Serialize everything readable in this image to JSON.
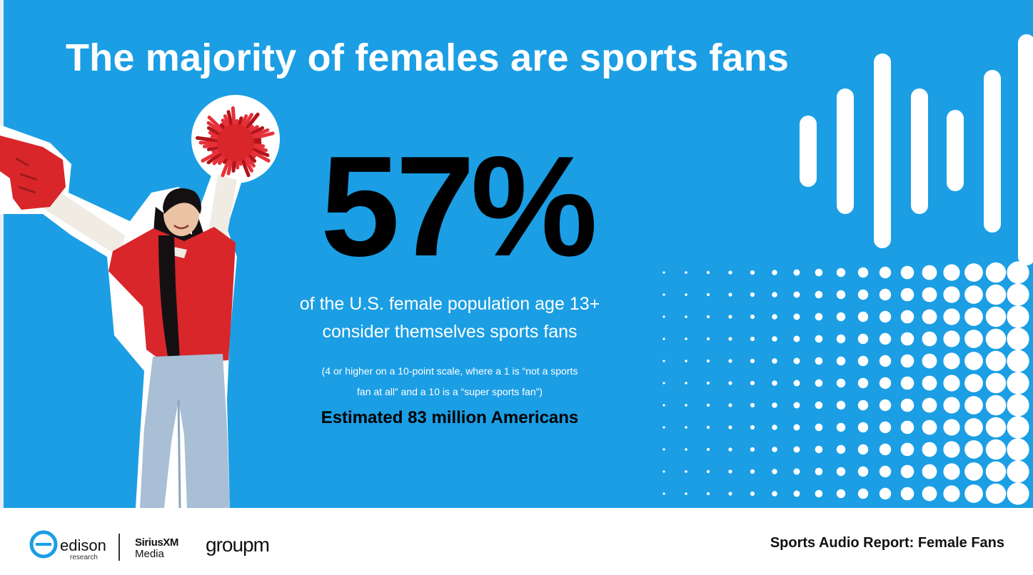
{
  "slide": {
    "title": "The majority of females are sports fans",
    "stat_value": "57%",
    "description_line1": "of the U.S. female population age 13+",
    "description_line2": "consider themselves sports fans",
    "note_line1": "(4 or higher on a 10-point scale, where a 1 is “not a sports",
    "note_line2": "fan at all” and a 10 is a “super sports fan”)",
    "estimate": "Estimated 83 million Americans"
  },
  "footer": {
    "edison_name": "edison",
    "edison_sub": "research",
    "sirius_top": "SiriusXM",
    "sirius_bottom": "Media",
    "groupm": "groupm",
    "report_title": "Sports Audio Report: Female Fans"
  },
  "colors": {
    "background": "#1b9ee4",
    "title": "#ffffff",
    "stat": "#000000",
    "jersey": "#d8262b"
  },
  "icons": [
    "foam-finger-icon",
    "pom-pom-icon",
    "sound-wave-bars",
    "halftone-dots"
  ]
}
